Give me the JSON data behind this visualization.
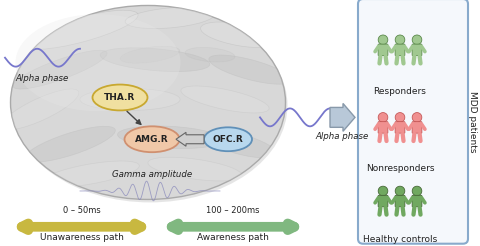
{
  "bg_color": "#ffffff",
  "alpha_wave_color": "#7777cc",
  "gamma_wave_color": "#8888bb",
  "tha_label": "THA.R",
  "amg_label": "AMG.R",
  "ofc_label": "OFC.R",
  "tha_color": "#f0e0a0",
  "amg_color": "#f0c8a8",
  "ofc_color": "#b8d8ee",
  "tha_edge": "#c8a830",
  "amg_edge": "#d09070",
  "ofc_edge": "#6090b8",
  "alpha_phase_label_left": "Alpha phase",
  "alpha_phase_label_right": "Alpha phase",
  "gamma_label": "Gamma amplitude",
  "unawareness_label": "Unawareness path",
  "awareness_label": "Awareness path",
  "unaware_time": "0 – 50ms",
  "aware_time": "100 – 200ms",
  "unaware_arrow_color": "#c8b840",
  "aware_arrow_color": "#80b880",
  "responders_color_fill": "#a0c890",
  "responders_color_edge": "#508040",
  "nonresponders_color_fill": "#f09090",
  "nonresponders_color_edge": "#c05050",
  "healthy_color_fill": "#70a860",
  "healthy_color_edge": "#406030",
  "responders_label": "Responders",
  "nonresponders_label": "Nonresponders",
  "healthy_label": "Healthy controls",
  "mdd_label": "MDD patients",
  "box_edge_color": "#88aacc",
  "arrow_fill": "#b8c8d8",
  "arrow_edge": "#8899aa",
  "text_color": "#222222",
  "brain_light": "#e8e8e8",
  "brain_mid": "#d0d0d0",
  "brain_dark": "#b8b8b8"
}
